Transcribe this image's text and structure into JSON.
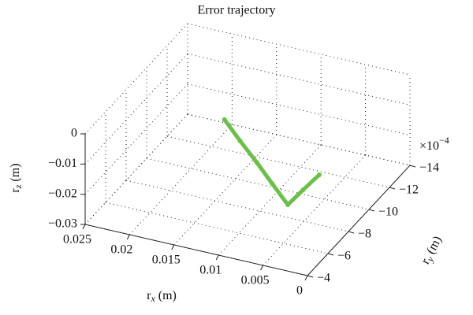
{
  "chart_data": {
    "type": "line3d",
    "title": "Error trajectory",
    "xlabel": {
      "base": "r",
      "sub": "x",
      "rest": " (m)"
    },
    "ylabel": {
      "base": "r",
      "sub": "y",
      "rest": " (m)"
    },
    "zlabel": {
      "base": "r",
      "sub": "z",
      "rest": " (m)"
    },
    "y_multiplier": {
      "base": "×10",
      "exp": "−4"
    },
    "xlim": [
      0.025,
      0
    ],
    "ylim": [
      -4,
      -14
    ],
    "zlim": [
      -0.03,
      0
    ],
    "xticks": [
      0.025,
      0.02,
      0.015,
      0.01,
      0.005,
      0
    ],
    "yticks": [
      {
        "value": -4,
        "label": "−4"
      },
      {
        "value": -6,
        "label": "−6"
      },
      {
        "value": -8,
        "label": "−8"
      },
      {
        "value": -10,
        "label": "−10"
      },
      {
        "value": -12,
        "label": "−12"
      },
      {
        "value": -14,
        "label": "−14"
      }
    ],
    "zticks": [
      {
        "value": -0.03,
        "label": "−0.03"
      },
      {
        "value": -0.02,
        "label": "−0.02"
      },
      {
        "value": -0.01,
        "label": "−0.01"
      },
      0
    ],
    "grid": true,
    "series": [
      {
        "color": "#6cc04a",
        "x": [
          0.0141,
          0.0118,
          0.0094,
          0.0071,
          0.0048,
          0.0041,
          0.0033
        ],
        "y": [
          -8.14,
          -7.67,
          -7.2,
          -6.72,
          -6.25,
          -7.13,
          -8.01
        ],
        "z": [
          -0.003,
          -0.0068,
          -0.0105,
          -0.0143,
          -0.018,
          -0.0158,
          -0.0135
        ]
      }
    ]
  }
}
